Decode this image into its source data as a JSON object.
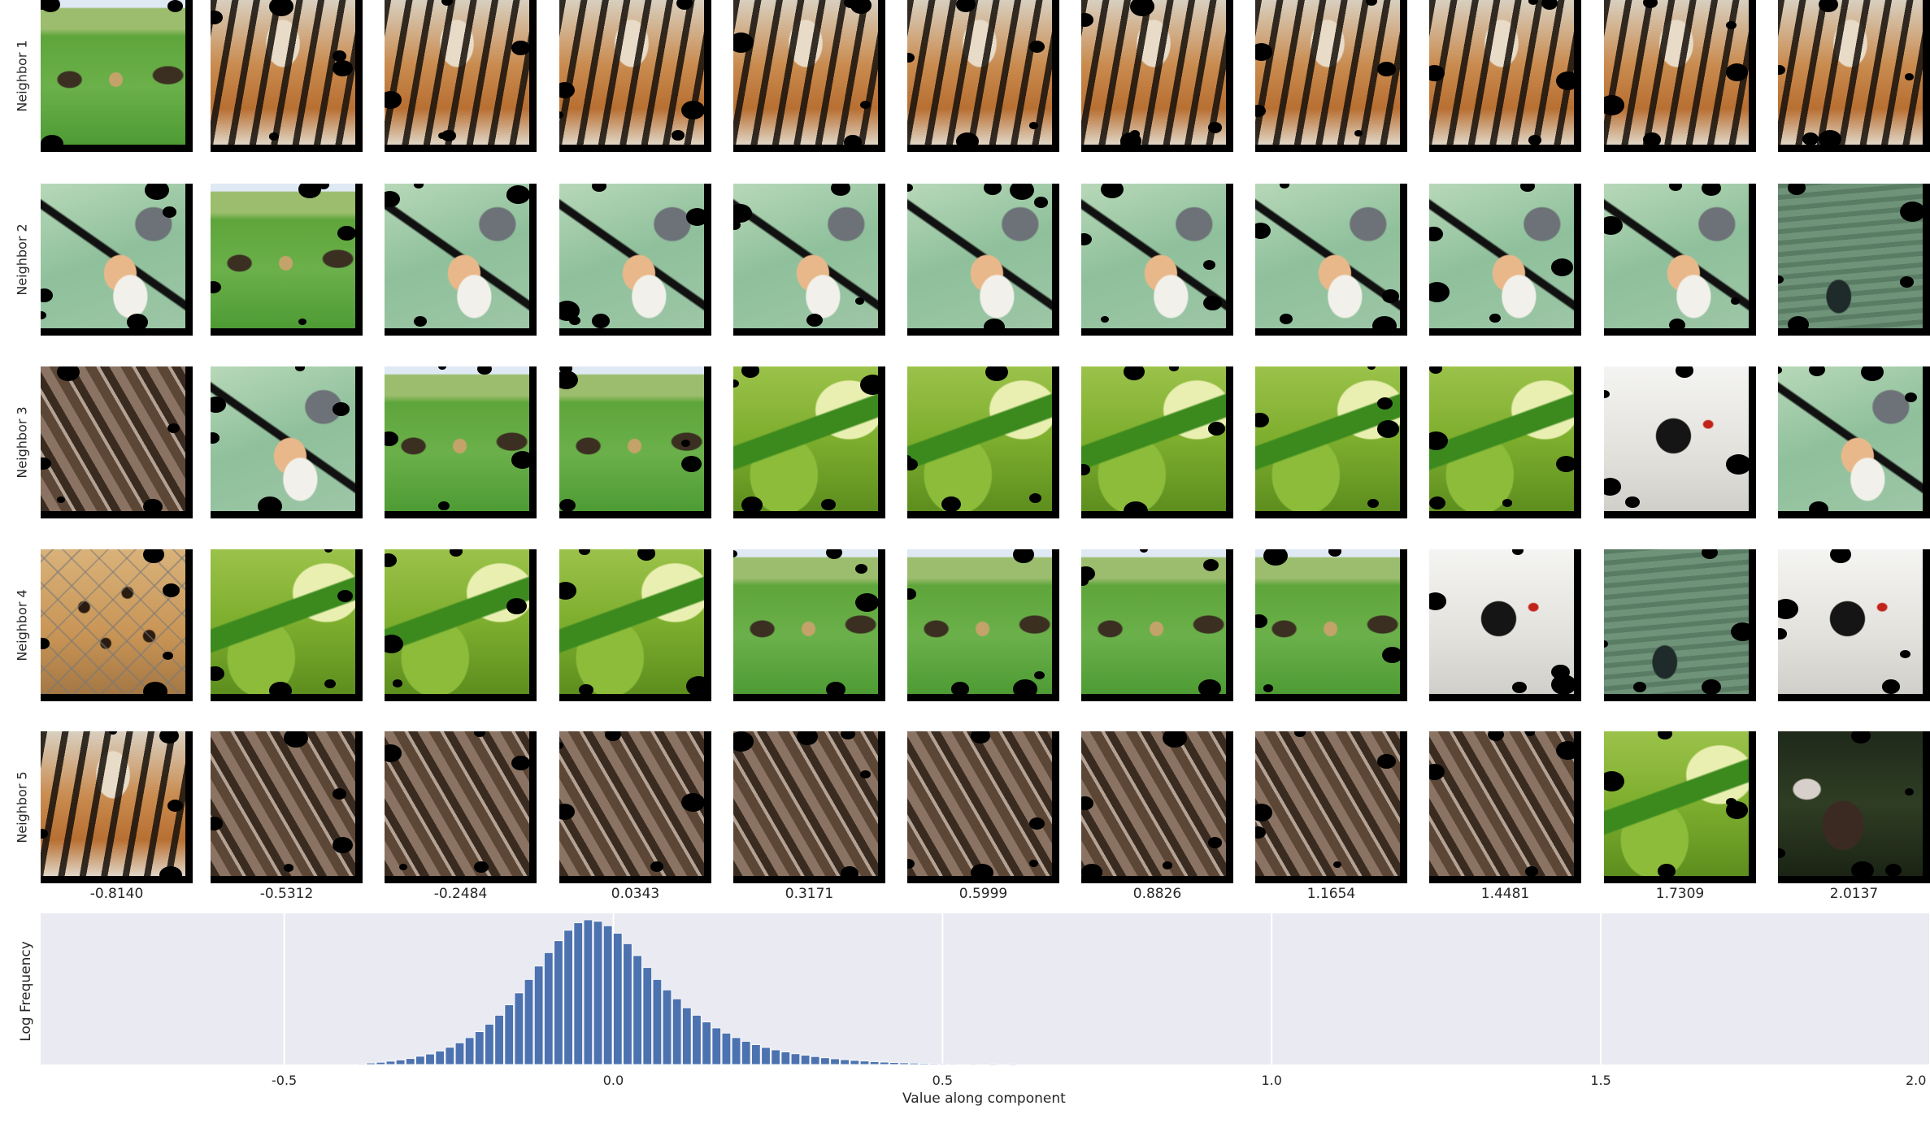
{
  "row_labels": [
    "Neighbor 1",
    "Neighbor 2",
    "Neighbor 3",
    "Neighbor 4",
    "Neighbor 5"
  ],
  "column_values": [
    "-0.8140",
    "-0.5312",
    "-0.2484",
    "0.0343",
    "0.3171",
    "0.5999",
    "0.8826",
    "1.1654",
    "1.4481",
    "1.7309",
    "2.0137"
  ],
  "grid_images": [
    [
      "grassland-field",
      "tiger",
      "tiger",
      "tiger",
      "tiger",
      "tiger",
      "tiger",
      "tiger",
      "tiger",
      "tiger",
      "tiger"
    ],
    [
      "finch-bird",
      "grassland-field",
      "finch-bird",
      "finch-bird",
      "finch-bird",
      "finch-bird",
      "finch-bird",
      "finch-bird",
      "finch-bird",
      "finch-bird",
      "black-swan"
    ],
    [
      "wooden-bench",
      "finch-bird",
      "grassland-field",
      "grassland-field",
      "green-snake",
      "green-snake",
      "green-snake",
      "green-snake",
      "green-snake",
      "oystercatcher",
      "finch-bird"
    ],
    [
      "leopard-behind-fence",
      "green-snake",
      "green-snake",
      "green-snake",
      "grassland-field",
      "grassland-field",
      "grassland-field",
      "grassland-field",
      "oystercatcher",
      "black-swan",
      "oystercatcher"
    ],
    [
      "tiger",
      "wooden-bench",
      "wooden-bench",
      "wooden-bench",
      "wooden-bench",
      "wooden-bench",
      "wooden-bench",
      "wooden-bench",
      "wooden-bench",
      "green-snake",
      "ibis-in-foliage"
    ]
  ],
  "chart_data": {
    "type": "bar",
    "xlabel": "Value along component",
    "ylabel": "Log Frequency",
    "xlim": [
      -0.87,
      2.0
    ],
    "x_ticks": [
      "-0.5",
      "0.0",
      "0.5",
      "1.0",
      "1.5",
      "2.0"
    ],
    "tick_values": [
      -0.5,
      0.0,
      0.5,
      1.0,
      1.5,
      2.0
    ],
    "grid": true,
    "bin_width": 0.015,
    "bins": [
      [
        -0.39,
        0.5
      ],
      [
        -0.375,
        1.0
      ],
      [
        -0.36,
        1.5
      ],
      [
        -0.345,
        2.2
      ],
      [
        -0.33,
        3.0
      ],
      [
        -0.315,
        4.0
      ],
      [
        -0.3,
        5.5
      ],
      [
        -0.285,
        7.0
      ],
      [
        -0.27,
        9.0
      ],
      [
        -0.255,
        11.5
      ],
      [
        -0.24,
        14.5
      ],
      [
        -0.225,
        18.0
      ],
      [
        -0.21,
        22.0
      ],
      [
        -0.195,
        27.0
      ],
      [
        -0.18,
        33.0
      ],
      [
        -0.165,
        40.0
      ],
      [
        -0.15,
        48.0
      ],
      [
        -0.135,
        57.0
      ],
      [
        -0.12,
        66.0
      ],
      [
        -0.105,
        75.0
      ],
      [
        -0.09,
        83.0
      ],
      [
        -0.075,
        90.0
      ],
      [
        -0.06,
        95.0
      ],
      [
        -0.045,
        97.0
      ],
      [
        -0.03,
        96.0
      ],
      [
        -0.015,
        93.0
      ],
      [
        0.0,
        88.0
      ],
      [
        0.015,
        81.0
      ],
      [
        0.03,
        73.0
      ],
      [
        0.045,
        65.0
      ],
      [
        0.06,
        57.0
      ],
      [
        0.075,
        50.0
      ],
      [
        0.09,
        44.0
      ],
      [
        0.105,
        38.0
      ],
      [
        0.12,
        33.0
      ],
      [
        0.135,
        28.5
      ],
      [
        0.15,
        24.5
      ],
      [
        0.165,
        21.0
      ],
      [
        0.18,
        18.0
      ],
      [
        0.195,
        15.5
      ],
      [
        0.21,
        13.3
      ],
      [
        0.225,
        11.4
      ],
      [
        0.24,
        9.8
      ],
      [
        0.255,
        8.4
      ],
      [
        0.27,
        7.2
      ],
      [
        0.285,
        6.2
      ],
      [
        0.3,
        5.3
      ],
      [
        0.315,
        4.5
      ],
      [
        0.33,
        3.8
      ],
      [
        0.345,
        3.2
      ],
      [
        0.36,
        2.7
      ],
      [
        0.375,
        2.3
      ],
      [
        0.39,
        1.9
      ],
      [
        0.405,
        1.6
      ],
      [
        0.42,
        1.3
      ],
      [
        0.435,
        1.1
      ],
      [
        0.45,
        0.9
      ],
      [
        0.465,
        0.7
      ],
      [
        0.48,
        0.6
      ],
      [
        0.495,
        0.5
      ],
      [
        0.51,
        0.4
      ],
      [
        0.54,
        0.3
      ],
      [
        0.57,
        0.2
      ],
      [
        0.6,
        0.15
      ]
    ],
    "bar_color": "#4c72b0",
    "background_color": "#eaeaf2"
  }
}
